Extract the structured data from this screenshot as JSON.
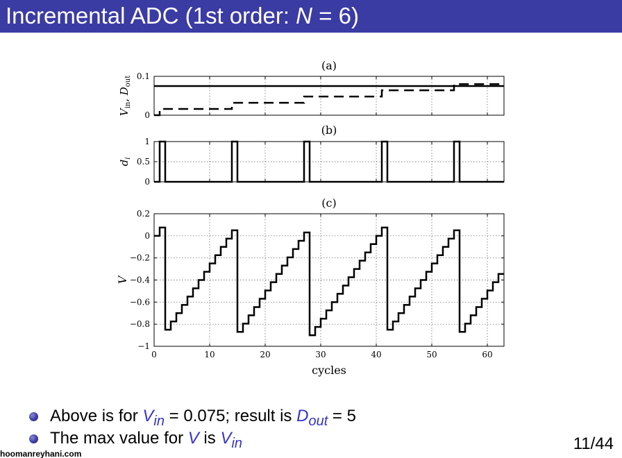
{
  "slide": {
    "title_prefix": "Incremental ADC (1st order: ",
    "title_n": "N",
    "title_suffix": " = 6)",
    "page": "11/44",
    "watermark": "hoomanreyhani.com",
    "bullets": [
      {
        "pre": "Above is for ",
        "v1": "V",
        "v1_sub": "in",
        "mid": " = 0.075; result is ",
        "v2": "D",
        "v2_sub": "out",
        "post": " = 5"
      },
      {
        "pre": "The max value for ",
        "v1": "V",
        "mid": " is ",
        "v2": "V",
        "v2_sub": "in"
      }
    ],
    "accent_color": "#3333cc",
    "title_bg": "#3b3ba4"
  },
  "chart_data": [
    {
      "type": "line",
      "panel": "(a)",
      "ylabel": "V_in, D_out",
      "xlim": [
        0,
        63
      ],
      "ylim": [
        0,
        0.1
      ],
      "yticks": [
        "0",
        "0.1"
      ],
      "grid": true,
      "series": [
        {
          "name": "V_in",
          "style": "solid",
          "x": [
            0,
            63
          ],
          "y": [
            0.075,
            0.075
          ]
        },
        {
          "name": "D_out",
          "style": "dashed",
          "x": [
            0,
            1,
            1,
            14,
            14,
            27,
            27,
            41,
            41,
            54,
            54,
            63
          ],
          "y": [
            0,
            0,
            0.016,
            0.016,
            0.032,
            0.032,
            0.048,
            0.048,
            0.064,
            0.064,
            0.08,
            0.08
          ]
        }
      ]
    },
    {
      "type": "line",
      "panel": "(b)",
      "ylabel": "d_i",
      "xlim": [
        0,
        63
      ],
      "ylim": [
        0,
        1
      ],
      "yticks": [
        "0",
        "0.5",
        "1"
      ],
      "grid": true,
      "pulse_starts": [
        1,
        14,
        27,
        41,
        54
      ],
      "pulse_width": 1
    },
    {
      "type": "line",
      "panel": "(c)",
      "xlabel": "cycles",
      "ylabel": "V",
      "xlim": [
        0,
        63
      ],
      "ylim": [
        -1,
        0.2
      ],
      "xticks": [
        "0",
        "10",
        "20",
        "30",
        "40",
        "50",
        "60"
      ],
      "yticks": [
        "−1",
        "−0.8",
        "−0.6",
        "−0.4",
        "−0.2",
        "0",
        "0.2"
      ],
      "grid": true,
      "v_in": 0.075,
      "cycle_starts": [
        1,
        14,
        27,
        41,
        54
      ],
      "series": [
        {
          "name": "V",
          "x": [
            0,
            1,
            2,
            15,
            28,
            42,
            55,
            63
          ],
          "y": [
            0,
            0.075,
            -0.85,
            -0.87,
            -0.9,
            -0.85,
            -0.87,
            -0.35
          ]
        }
      ]
    }
  ]
}
